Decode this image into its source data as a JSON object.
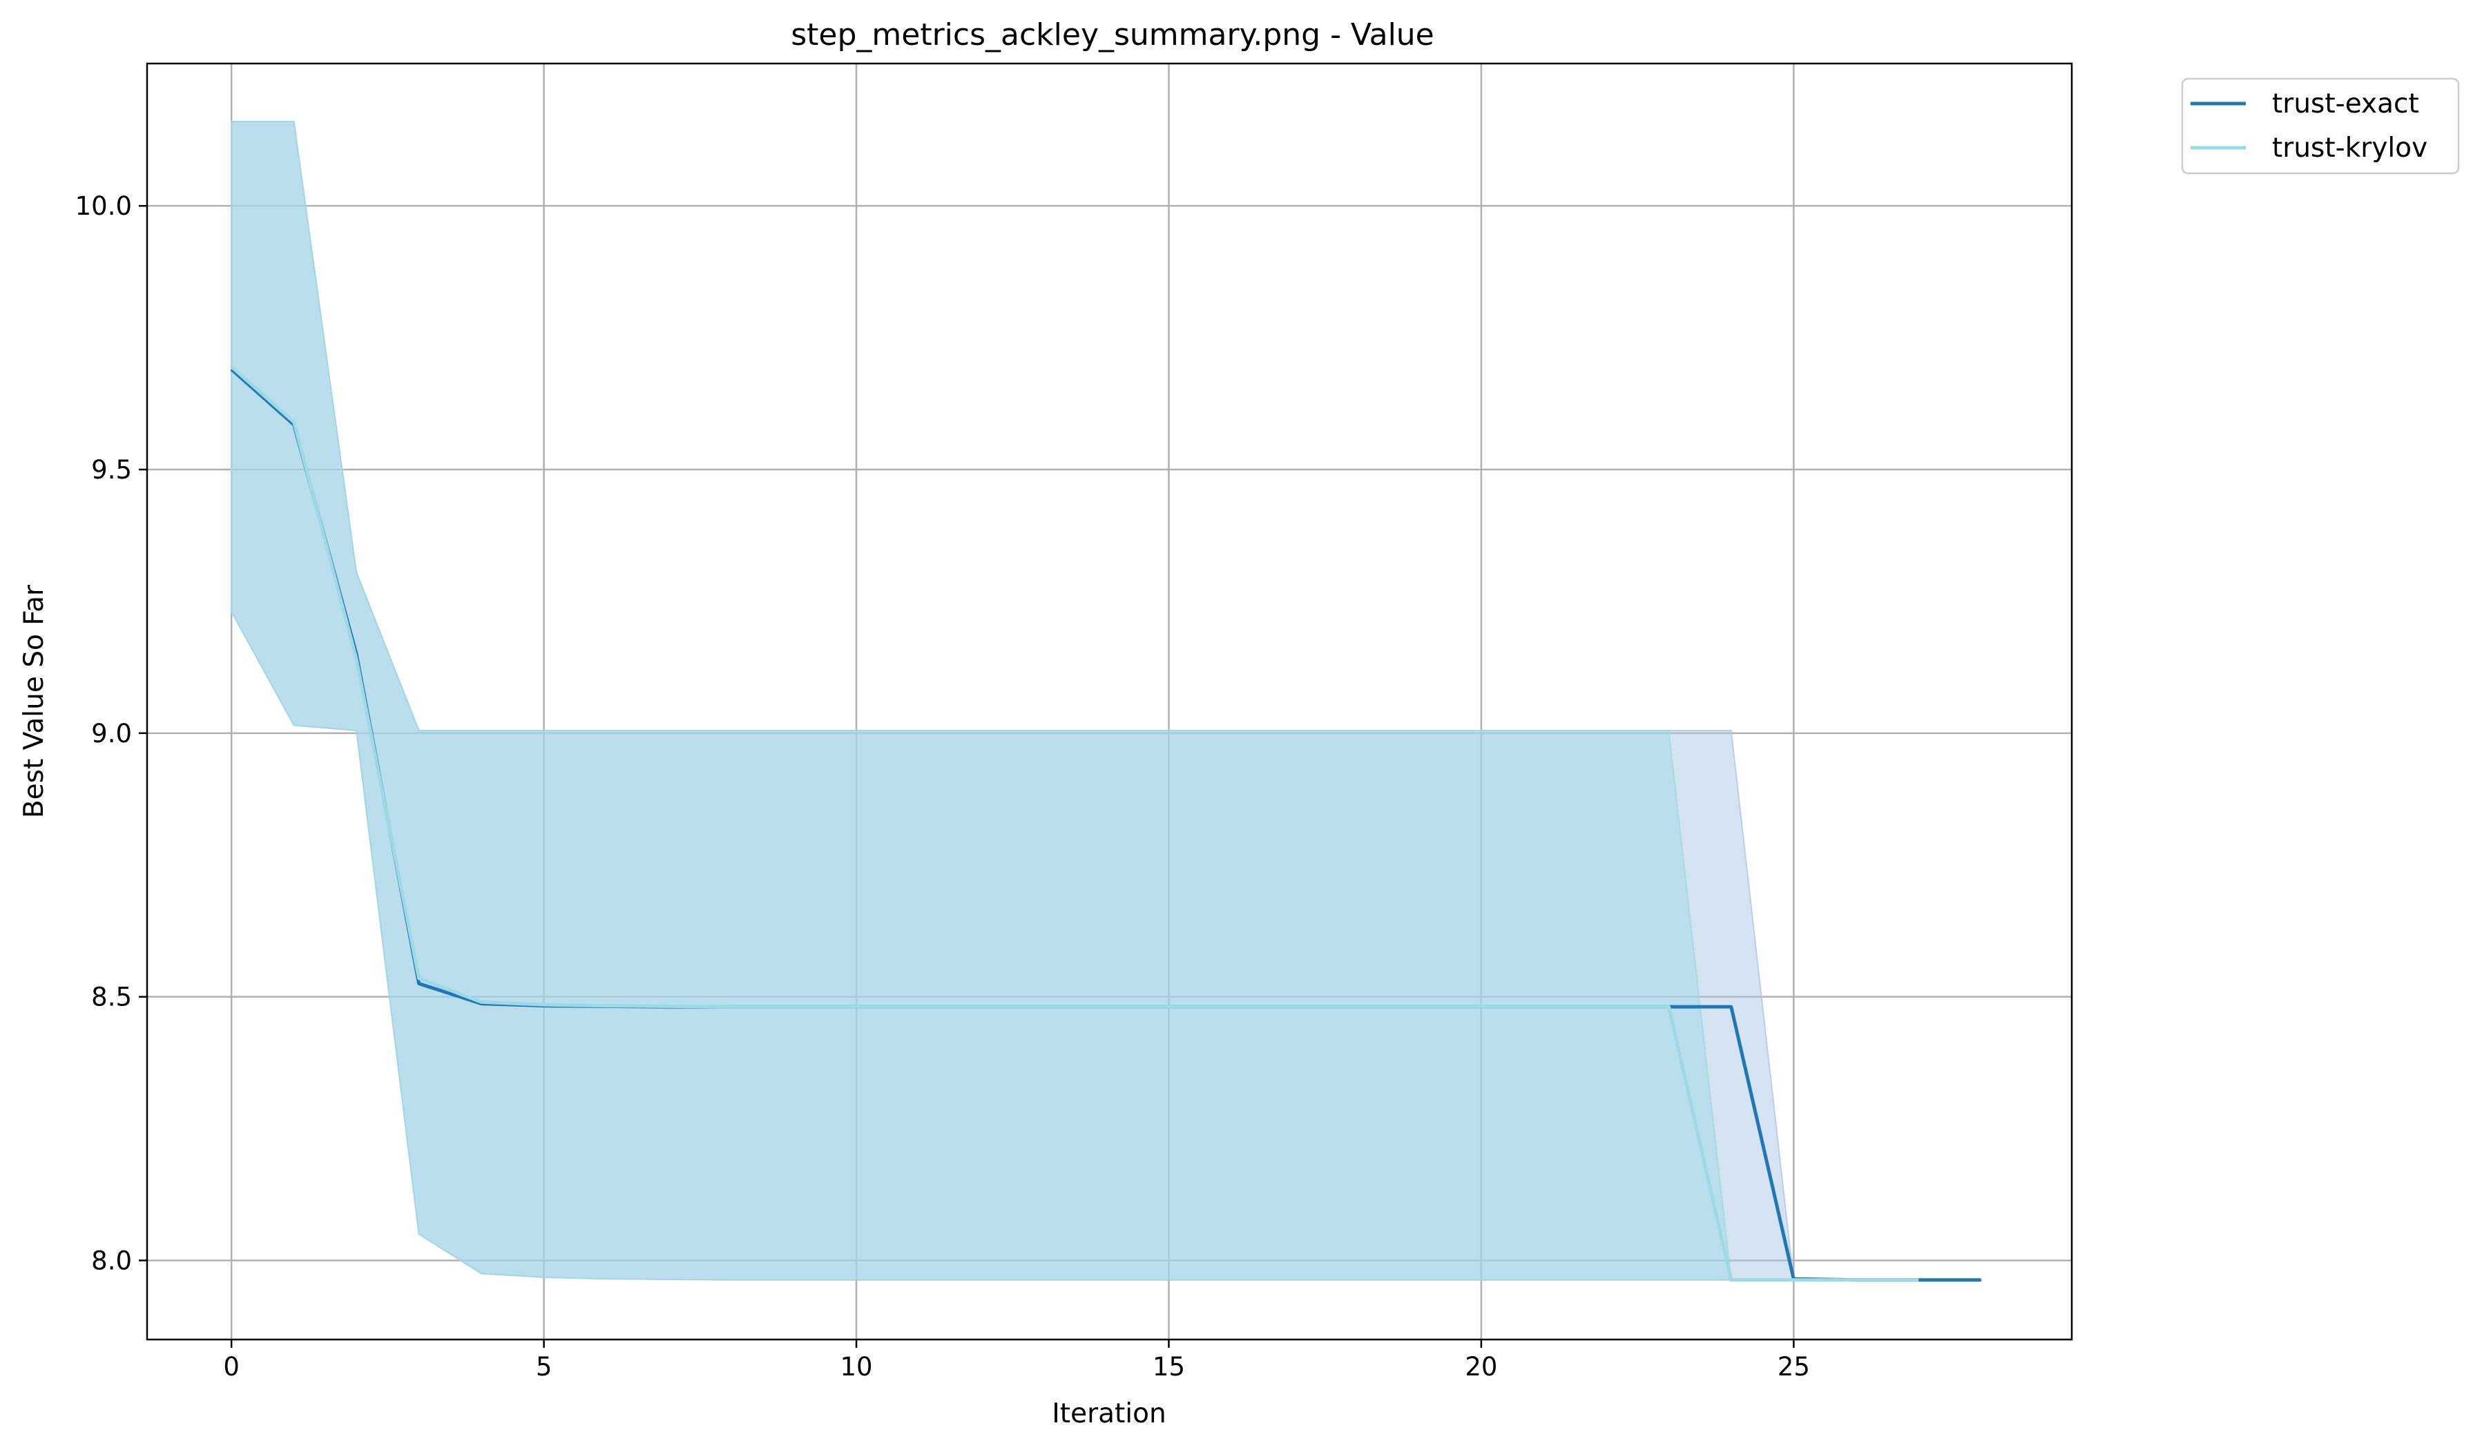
{
  "chart_data": {
    "type": "line",
    "title": "step_metrics_ackley_summary.png - Value",
    "xlabel": "Iteration",
    "ylabel": "Best Value So Far",
    "xlim": [
      -1.35,
      29.45
    ],
    "ylim": [
      7.85,
      10.27
    ],
    "xticks": [
      0,
      5,
      10,
      15,
      20,
      25
    ],
    "yticks": [
      8.0,
      8.5,
      9.0,
      9.5,
      10.0
    ],
    "ytick_labels": [
      "8.0",
      "8.5",
      "9.0",
      "9.5",
      "10.0"
    ],
    "grid": true,
    "legend_position": "outside-top-right",
    "series": [
      {
        "name": "trust-exact",
        "color": "#1f77b4",
        "x": [
          0,
          1,
          2,
          3,
          4,
          5,
          6,
          7,
          8,
          9,
          10,
          11,
          12,
          13,
          14,
          15,
          16,
          17,
          18,
          19,
          20,
          21,
          22,
          23,
          24,
          25,
          26,
          27,
          28
        ],
        "y": [
          9.69,
          9.585,
          9.15,
          8.525,
          8.487,
          8.483,
          8.482,
          8.481,
          8.481,
          8.481,
          8.481,
          8.481,
          8.481,
          8.481,
          8.481,
          8.481,
          8.481,
          8.481,
          8.481,
          8.481,
          8.481,
          8.481,
          8.481,
          8.481,
          8.481,
          7.965,
          7.963,
          7.963,
          7.963
        ],
        "band_upper": [
          10.16,
          10.16,
          9.305,
          9.005,
          9.005,
          9.005,
          9.005,
          9.005,
          9.005,
          9.005,
          9.005,
          9.005,
          9.005,
          9.005,
          9.005,
          9.005,
          9.005,
          9.005,
          9.005,
          9.005,
          9.005,
          9.005,
          9.005,
          9.005,
          9.005,
          7.963,
          7.963,
          7.963,
          7.963
        ],
        "band_lower": [
          9.23,
          9.015,
          9.005,
          8.05,
          7.975,
          7.968,
          7.965,
          7.964,
          7.963,
          7.963,
          7.963,
          7.963,
          7.963,
          7.963,
          7.963,
          7.963,
          7.963,
          7.963,
          7.963,
          7.963,
          7.963,
          7.963,
          7.963,
          7.963,
          7.963,
          7.963,
          7.963,
          7.963,
          7.963
        ],
        "band_color": "#aec7e8"
      },
      {
        "name": "trust-krylov",
        "color": "#9edae5",
        "x": [
          0,
          1,
          2,
          3,
          4,
          5,
          6,
          7,
          8,
          9,
          10,
          11,
          12,
          13,
          14,
          15,
          16,
          17,
          18,
          19,
          20,
          21,
          22,
          23,
          24,
          25,
          26,
          27
        ],
        "y": [
          9.695,
          9.59,
          9.14,
          8.535,
          8.49,
          8.485,
          8.483,
          8.482,
          8.481,
          8.481,
          8.481,
          8.481,
          8.481,
          8.481,
          8.481,
          8.481,
          8.481,
          8.481,
          8.481,
          8.481,
          8.481,
          8.481,
          8.481,
          8.481,
          7.963,
          7.963,
          7.963,
          7.963
        ],
        "band_upper": [
          10.16,
          10.16,
          9.305,
          9.005,
          9.005,
          9.005,
          9.005,
          9.005,
          9.005,
          9.005,
          9.005,
          9.005,
          9.005,
          9.005,
          9.005,
          9.005,
          9.005,
          9.005,
          9.005,
          9.005,
          9.005,
          9.005,
          9.005,
          9.005,
          7.963,
          7.963,
          7.963,
          7.963
        ],
        "band_lower": [
          9.23,
          9.015,
          9.005,
          8.05,
          7.975,
          7.968,
          7.965,
          7.964,
          7.963,
          7.963,
          7.963,
          7.963,
          7.963,
          7.963,
          7.963,
          7.963,
          7.963,
          7.963,
          7.963,
          7.963,
          7.963,
          7.963,
          7.963,
          7.963,
          7.963,
          7.963,
          7.963,
          7.963
        ],
        "band_color": "#9edae5"
      }
    ]
  }
}
